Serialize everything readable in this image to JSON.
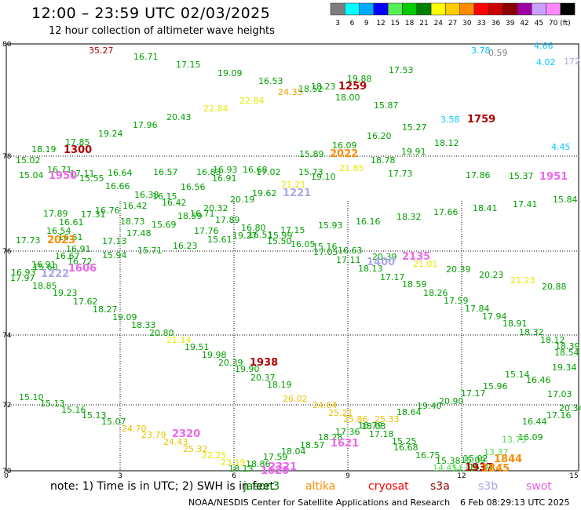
{
  "title": "12:00 – 23:59 UTC 02/03/2025",
  "subtitle": "12 hour collection of altimeter wave heights",
  "legend": {
    "unit": "(ft)",
    "bins": [
      {
        "label": "3",
        "color": "#7d7d7d"
      },
      {
        "label": "6",
        "color": "#00ffff"
      },
      {
        "label": "9",
        "color": "#00aaff"
      },
      {
        "label": "12",
        "color": "#0000ff"
      },
      {
        "label": "15",
        "color": "#55ee55"
      },
      {
        "label": "18",
        "color": "#00cc00"
      },
      {
        "label": "21",
        "color": "#008000"
      },
      {
        "label": "24",
        "color": "#ffff00"
      },
      {
        "label": "27",
        "color": "#ffcc00"
      },
      {
        "label": "30",
        "color": "#ff8c00"
      },
      {
        "label": "33",
        "color": "#ff0000"
      },
      {
        "label": "36",
        "color": "#cc0000"
      },
      {
        "label": "39",
        "color": "#8b0000"
      },
      {
        "label": "42",
        "color": "#a000a0"
      },
      {
        "label": "45",
        "color": "#c8a0ff"
      },
      {
        "label": "70",
        "color": "#ff88ff"
      },
      {
        "label": "",
        "color": "#000000"
      }
    ]
  },
  "axes": {
    "lat_labels": [
      "80",
      "78",
      "76",
      "74",
      "72",
      "70"
    ],
    "lon_labels": [
      "0",
      "3",
      "6",
      "9",
      "12",
      "15"
    ]
  },
  "readings": [
    {
      "v": "35.27",
      "c": "#b00000"
    },
    {
      "v": "16.71",
      "c": "#00a000"
    },
    {
      "v": "17.15",
      "c": "#00a000"
    },
    {
      "v": "19.09",
      "c": "#00a000"
    },
    {
      "v": "16.53",
      "c": "#00a000"
    },
    {
      "v": "24.35",
      "c": "#e8a000"
    },
    {
      "v": "18.52",
      "c": "#00a000"
    },
    {
      "v": "18.23",
      "c": "#00a000"
    },
    {
      "v": "19.88",
      "c": "#00a000"
    },
    {
      "v": "17.53",
      "c": "#00a000"
    },
    {
      "v": "3.78",
      "c": "#00c8ff"
    },
    {
      "v": "0.59",
      "c": "#808080"
    },
    {
      "v": "4.66",
      "c": "#00c8ff"
    },
    {
      "v": "4.02",
      "c": "#00c8ff"
    },
    {
      "v": "172",
      "c": "#a8a8e8"
    },
    {
      "v": "22.84",
      "c": "#e8e800"
    },
    {
      "v": "22.84",
      "c": "#e8e800"
    },
    {
      "v": "18.00",
      "c": "#00a000"
    },
    {
      "v": "15.87",
      "c": "#00a000"
    },
    {
      "v": "20.43",
      "c": "#00a000"
    },
    {
      "v": "17.96",
      "c": "#00a000"
    },
    {
      "v": "3.58",
      "c": "#00c8ff"
    },
    {
      "v": "16.20",
      "c": "#00a000"
    },
    {
      "v": "15.27",
      "c": "#00a000"
    },
    {
      "v": "19.24",
      "c": "#00a000"
    },
    {
      "v": "17.85",
      "c": "#00a000"
    },
    {
      "v": "18.19",
      "c": "#00a000"
    },
    {
      "v": "16.09",
      "c": "#00a000"
    },
    {
      "v": "18.12",
      "c": "#00a000"
    },
    {
      "v": "19.91",
      "c": "#00a000"
    },
    {
      "v": "4.45",
      "c": "#00c8ff"
    },
    {
      "v": "15.02",
      "c": "#00a000"
    },
    {
      "v": "15.89",
      "c": "#00a000"
    },
    {
      "v": "18.78",
      "c": "#00a000"
    },
    {
      "v": "16.71",
      "c": "#00a000"
    },
    {
      "v": "15.04",
      "c": "#00a000"
    },
    {
      "v": "17.11",
      "c": "#00a000"
    },
    {
      "v": "15.55",
      "c": "#00a000"
    },
    {
      "v": "16.64",
      "c": "#00a000"
    },
    {
      "v": "16.57",
      "c": "#00a000"
    },
    {
      "v": "16.83",
      "c": "#00a000"
    },
    {
      "v": "16.93",
      "c": "#00a000"
    },
    {
      "v": "16.68",
      "c": "#00a000"
    },
    {
      "v": "17.02",
      "c": "#00a000"
    },
    {
      "v": "15.73",
      "c": "#00a000"
    },
    {
      "v": "21.85",
      "c": "#e8e800"
    },
    {
      "v": "17.73",
      "c": "#00a000"
    },
    {
      "v": "17.86",
      "c": "#00a000"
    },
    {
      "v": "15.37",
      "c": "#00a000"
    },
    {
      "v": "16.91",
      "c": "#00a000"
    },
    {
      "v": "19.10",
      "c": "#00a000"
    },
    {
      "v": "16.66",
      "c": "#00a000"
    },
    {
      "v": "16.56",
      "c": "#00a000"
    },
    {
      "v": "21.21",
      "c": "#e8e800"
    },
    {
      "v": "16.38",
      "c": "#00a000"
    },
    {
      "v": "16.15",
      "c": "#00a000"
    },
    {
      "v": "19.62",
      "c": "#00a000"
    },
    {
      "v": "20.19",
      "c": "#00a000"
    },
    {
      "v": "16.42",
      "c": "#00a000"
    },
    {
      "v": "16.42",
      "c": "#00a000"
    },
    {
      "v": "20.32",
      "c": "#00a000"
    },
    {
      "v": "15.84",
      "c": "#00a000"
    },
    {
      "v": "17.41",
      "c": "#00a000"
    },
    {
      "v": "18.41",
      "c": "#00a000"
    },
    {
      "v": "17.66",
      "c": "#00a000"
    },
    {
      "v": "18.32",
      "c": "#00a000"
    },
    {
      "v": "16.16",
      "c": "#00a000"
    },
    {
      "v": "15.93",
      "c": "#00a000"
    },
    {
      "v": "17.89",
      "c": "#00a000"
    },
    {
      "v": "16.76",
      "c": "#00a000"
    },
    {
      "v": "17.31",
      "c": "#00a000"
    },
    {
      "v": "16.61",
      "c": "#00a000"
    },
    {
      "v": "18.73",
      "c": "#00a000"
    },
    {
      "v": "18.59",
      "c": "#00a000"
    },
    {
      "v": "16.71",
      "c": "#00a000"
    },
    {
      "v": "16.54",
      "c": "#00a000"
    },
    {
      "v": "17.89",
      "c": "#00a000"
    },
    {
      "v": "15.69",
      "c": "#00a000"
    },
    {
      "v": "16.61",
      "c": "#00a000"
    },
    {
      "v": "17.48",
      "c": "#00a000"
    },
    {
      "v": "17.76",
      "c": "#00a000"
    },
    {
      "v": "16.80",
      "c": "#00a000"
    },
    {
      "v": "16.51",
      "c": "#00a000"
    },
    {
      "v": "15.99",
      "c": "#00a000"
    },
    {
      "v": "17.15",
      "c": "#00a000"
    },
    {
      "v": "17.73",
      "c": "#00a000"
    },
    {
      "v": "17.13",
      "c": "#00a000"
    },
    {
      "v": "19.27",
      "c": "#00a000"
    },
    {
      "v": "15.61",
      "c": "#00a000"
    },
    {
      "v": "15.50",
      "c": "#00a000"
    },
    {
      "v": "16.05",
      "c": "#00a000"
    },
    {
      "v": "15.16",
      "c": "#00a000"
    },
    {
      "v": "16.23",
      "c": "#00a000"
    },
    {
      "v": "15.71",
      "c": "#00a000"
    },
    {
      "v": "16.91",
      "c": "#00a000"
    },
    {
      "v": "15.94",
      "c": "#00a000"
    },
    {
      "v": "17.05",
      "c": "#00a000"
    },
    {
      "v": "16.63",
      "c": "#00a000"
    },
    {
      "v": "16.67",
      "c": "#00a000"
    },
    {
      "v": "16.72",
      "c": "#00a000"
    },
    {
      "v": "16.91",
      "c": "#00a000"
    },
    {
      "v": "17.11",
      "c": "#00a000"
    },
    {
      "v": "20.39",
      "c": "#00a000"
    },
    {
      "v": "21.01",
      "c": "#e8e800"
    },
    {
      "v": "16.93",
      "c": "#00a000"
    },
    {
      "v": "15.60",
      "c": "#00a000"
    },
    {
      "v": "17.97",
      "c": "#00a000"
    },
    {
      "v": "18.13",
      "c": "#00a000"
    },
    {
      "v": "20.39",
      "c": "#00a000"
    },
    {
      "v": "20.23",
      "c": "#00a000"
    },
    {
      "v": "21.23",
      "c": "#e8e800"
    },
    {
      "v": "20.88",
      "c": "#00a000"
    },
    {
      "v": "18.85",
      "c": "#00a000"
    },
    {
      "v": "17.17",
      "c": "#00a000"
    },
    {
      "v": "18.59",
      "c": "#00a000"
    },
    {
      "v": "19.23",
      "c": "#00a000"
    },
    {
      "v": "18.26",
      "c": "#00a000"
    },
    {
      "v": "17.62",
      "c": "#00a000"
    },
    {
      "v": "17.59",
      "c": "#00a000"
    },
    {
      "v": "18.27",
      "c": "#00a000"
    },
    {
      "v": "17.84",
      "c": "#00a000"
    },
    {
      "v": "19.09",
      "c": "#00a000"
    },
    {
      "v": "17.94",
      "c": "#00a000"
    },
    {
      "v": "18.33",
      "c": "#00a000"
    },
    {
      "v": "18.91",
      "c": "#00a000"
    },
    {
      "v": "20.80",
      "c": "#00a000"
    },
    {
      "v": "18.32",
      "c": "#00a000"
    },
    {
      "v": "21.14",
      "c": "#e8e800"
    },
    {
      "v": "18.12",
      "c": "#00a000"
    },
    {
      "v": "19.51",
      "c": "#00a000"
    },
    {
      "v": "18.39",
      "c": "#00a000"
    },
    {
      "v": "19.98",
      "c": "#00a000"
    },
    {
      "v": "18.54",
      "c": "#00a000"
    },
    {
      "v": "20.39",
      "c": "#00a000"
    },
    {
      "v": "19.90",
      "c": "#00a000"
    },
    {
      "v": "19.34",
      "c": "#00a000"
    },
    {
      "v": "20.37",
      "c": "#00a000"
    },
    {
      "v": "16.46",
      "c": "#00a000"
    },
    {
      "v": "15.14",
      "c": "#00a000"
    },
    {
      "v": "18.19",
      "c": "#00a000"
    },
    {
      "v": "15.96",
      "c": "#00a000"
    },
    {
      "v": "17.17",
      "c": "#00a000"
    },
    {
      "v": "15.10",
      "c": "#00a000"
    },
    {
      "v": "26.02",
      "c": "#e8c000"
    },
    {
      "v": "20.90",
      "c": "#00a000"
    },
    {
      "v": "17.03",
      "c": "#00a000"
    },
    {
      "v": "15.13",
      "c": "#00a000"
    },
    {
      "v": "24.64",
      "c": "#e8c000"
    },
    {
      "v": "19.40",
      "c": "#00a000"
    },
    {
      "v": "20.34",
      "c": "#00a000"
    },
    {
      "v": "15.16",
      "c": "#00a000"
    },
    {
      "v": "25.21",
      "c": "#e8c000"
    },
    {
      "v": "18.64",
      "c": "#00a000"
    },
    {
      "v": "17.16",
      "c": "#00a000"
    },
    {
      "v": "15.13",
      "c": "#00a000"
    },
    {
      "v": "25.33",
      "c": "#e8c000"
    },
    {
      "v": "16.44",
      "c": "#00a000"
    },
    {
      "v": "15.07",
      "c": "#00a000"
    },
    {
      "v": "25.86",
      "c": "#e8c000"
    },
    {
      "v": "18.79",
      "c": "#00a000"
    },
    {
      "v": "16.09",
      "c": "#00a000"
    },
    {
      "v": "24.70",
      "c": "#e8c000"
    },
    {
      "v": "18.03",
      "c": "#00a000"
    },
    {
      "v": "13.73",
      "c": "#55dd55"
    },
    {
      "v": "23.79",
      "c": "#e8c000"
    },
    {
      "v": "17.36",
      "c": "#00a000"
    },
    {
      "v": "17.18",
      "c": "#00a000"
    },
    {
      "v": "13.37",
      "c": "#55dd55"
    },
    {
      "v": "24.43",
      "c": "#e8c000"
    },
    {
      "v": "18.28",
      "c": "#00a000"
    },
    {
      "v": "15.25",
      "c": "#00a000"
    },
    {
      "v": "25.32",
      "c": "#e8c000"
    },
    {
      "v": "18.57",
      "c": "#00a000"
    },
    {
      "v": "16.68",
      "c": "#00a000"
    },
    {
      "v": "22.25",
      "c": "#e8e800"
    },
    {
      "v": "18.04",
      "c": "#00a000"
    },
    {
      "v": "16.75",
      "c": "#00a000"
    },
    {
      "v": "15.02",
      "c": "#00a000"
    },
    {
      "v": "23.19",
      "c": "#e8e800"
    },
    {
      "v": "17.59",
      "c": "#00a000"
    },
    {
      "v": "15.38",
      "c": "#00a000"
    },
    {
      "v": "15.09",
      "c": "#00a000"
    },
    {
      "v": "18.86",
      "c": "#00a000"
    },
    {
      "v": "14.45",
      "c": "#55dd55"
    },
    {
      "v": "15.04",
      "c": "#00a000"
    },
    {
      "v": "18.13",
      "c": "#00a000"
    },
    {
      "v": "14.05",
      "c": "#55dd55"
    }
  ],
  "pass_times": [
    {
      "t": "1300",
      "c": "#b00000"
    },
    {
      "t": "1259",
      "c": "#b00000"
    },
    {
      "t": "1759",
      "c": "#b00000"
    },
    {
      "t": "1938",
      "c": "#b00000"
    },
    {
      "t": "1937",
      "c": "#b00000"
    },
    {
      "t": "2022",
      "c": "#ff8c00"
    },
    {
      "t": "2023",
      "c": "#ff8c00"
    },
    {
      "t": "1844",
      "c": "#ff8c00"
    },
    {
      "t": "1845",
      "c": "#ff8c00"
    },
    {
      "t": "1221",
      "c": "#a8a8e8"
    },
    {
      "t": "1222",
      "c": "#a8a8e8"
    },
    {
      "t": "1400",
      "c": "#a8a8e8"
    },
    {
      "t": "1950",
      "c": "#ee66ee"
    },
    {
      "t": "1951",
      "c": "#ee66ee"
    },
    {
      "t": "1606",
      "c": "#ee66ee"
    },
    {
      "t": "2135",
      "c": "#ee66ee"
    },
    {
      "t": "2320",
      "c": "#ee66ee"
    },
    {
      "t": "1621",
      "c": "#ee66ee"
    },
    {
      "t": "1620",
      "c": "#ee66ee"
    },
    {
      "t": "2321",
      "c": "#ee66ee"
    }
  ],
  "footnote": "note: 1) Time is in UTC; 2) SWH is in feet",
  "missions": [
    {
      "name": "jason3",
      "color": "#008000"
    },
    {
      "name": "altika",
      "color": "#ff8c00"
    },
    {
      "name": "cryosat",
      "color": "#ff0000"
    },
    {
      "name": "s3a",
      "color": "#8b0000"
    },
    {
      "name": "s3b",
      "color": "#a8a8e8"
    },
    {
      "name": "swot",
      "color": "#ff88ff"
    }
  ],
  "credit": "NOAA/NESDIS Center for Satellite Applications and Research",
  "generated": "6 Feb 08:29:13 UTC 2025"
}
